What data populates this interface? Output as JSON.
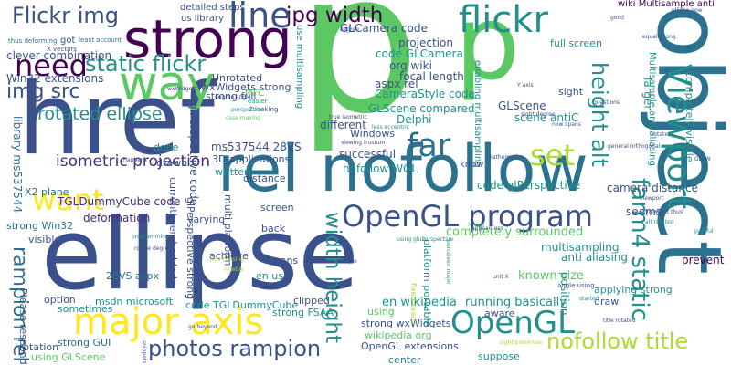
{
  "palette": {
    "dark_purple": "#440154",
    "purple": "#472c7a",
    "indigo": "#3b518b",
    "blue": "#2c718e",
    "teal": "#21908d",
    "green": "#27ad81",
    "light_green": "#5cc863",
    "lime": "#aadc32",
    "yellow": "#fde725"
  },
  "words": {
    "p_big": "p",
    "p2": "p",
    "href": "href",
    "ellipse": "ellipse",
    "object": "object",
    "strong": "strong",
    "rel_nofollow": "rel nofollow",
    "flickr": "flickr",
    "opengl_program": "OpenGL program",
    "major_axis": "major axis",
    "opengl": "OpenGL",
    "way": "way",
    "need": "need",
    "flickr_img": "Flickr img",
    "jpg_width": "jpg width",
    "line": "line",
    "img_src": "img src",
    "static_flickr": "static flickr",
    "rotated_ellipse": "rotated ellipse",
    "far": "far",
    "set": "set",
    "want": "want",
    "photos_rampion": "photos rampion",
    "nofollow_title": "nofollow title",
    "viewport": "Viewport",
    "farm4_static": "farm4 static",
    "height_alt": "height alt",
    "width_height": "width height",
    "rampion_rel": "rampion rel",
    "isometric_projection": "isometric projection",
    "clever_combination": "clever combination",
    "win32_extensions": "Win32 extensions",
    "library_ms537544": "library ms537544",
    "tgldummycube_code": "TGLDummyCube code",
    "deformation": "deformation",
    "x2_plane": "X2 plane",
    "strong_win32": "strong Win32",
    "visible": "visible",
    "r28vs_aspx": "28VS aspx",
    "please_respond": "Please respond",
    "option": "option",
    "sometimes": "sometimes",
    "rotation": "rotation",
    "strong_gui": "strong GUI",
    "using_glscene": "using GLScene",
    "msdn_microsoft": "msdn microsoft",
    "code_tgldummycube": "code TGLDummyCube",
    "strong_wxwidgets": "strong wxWidgets",
    "wikipedia_org": "wikipedia org",
    "opengl_extensions": "OpenGL extensions",
    "center": "center",
    "en_wikipedia": "en wikipedia",
    "running_basically": "running basically",
    "suppose": "suppose",
    "aware": "aware",
    "known_size": "known size",
    "position": "position",
    "applying_strong": "applying strong",
    "draw": "draw",
    "prevent": "prevent",
    "completely_surrounded": "completely surrounded",
    "multisampling": "multisampling",
    "anti_aliasing": "anti aliasing",
    "code_glperspective": "code glPerspective",
    "camera_distance": "camera distance",
    "seems": "seems",
    "multisample_aa": "Multisample anti aliasing",
    "glcamera_code": "GLCamera code",
    "code_glcamera": "code GLCamera",
    "org_wiki": "org wiki",
    "projection": "projection",
    "focal_length": "focal length",
    "aspx_rel": "aspx rel",
    "camerastyle_code": "CameraStyle code",
    "glscene_compared": "GLScene compared",
    "glscene": "GLScene",
    "scene_antic": "scene antiC",
    "delphi": "Delphi",
    "windows": "Windows",
    "successful": "successful",
    "nofollow_wgl": "nofollow WGL",
    "different": "different",
    "full_screen": "full screen",
    "sight": "sight",
    "larger": "larger",
    "completely_visible": "completely visible",
    "wiki_multisample": "wiki Multisample anti",
    "detailed_steps": "detailed steps",
    "us_library": "us library",
    "use_multisampling": "use multisampling",
    "enabling_multisampling": "enabling multisampling",
    "unrotated": "Unrotated",
    "wxwidgets_strong": "wxWidgets strong",
    "strong_full": "strong full",
    "mfc": "MFC",
    "gl_perspective_code": "glPerspective code",
    "ms537544_28vs": "ms537544 28VS",
    "applications_3d": "3D applications",
    "written": "written",
    "distance": "distance",
    "currently_embedded": "currently embedded",
    "varying": "varying",
    "glperspective_strong": "glPerspective strong",
    "multi_platform": "multi platform",
    "screen": "screen",
    "back": "back",
    "achieve": "achieve",
    "spans": "spans",
    "en_us": "en us",
    "clipped": "clipped",
    "using": "using",
    "done": "done",
    "drawn": "drawn",
    "strong_fsaa": "strong FSAA",
    "platform_portable": "platform portable",
    "fixed_exact": "fixed exact",
    "got": "got",
    "thus_deforming": "thus deforming",
    "least_account": "least account",
    "x_vectors": "X vectors",
    "degree_angle": "degree angle",
    "easier": "easier",
    "z_looking": "Z looking",
    "perspective": "perspective",
    "case_making": "case making",
    "true_isometric": "true isometric",
    "viewing_frustum": "viewing frustum",
    "less_eccentric": "less eccentric",
    "general_orthogonal": "general orthogonal",
    "glew": "GLEW",
    "mathematics": "mathematics",
    "now_spans": "now spans",
    "know": "know",
    "viewport_thus": "viewport thus",
    "alt_rotated": "alt rotated",
    "painful": "painful",
    "title_rotated": "title rotated",
    "angle_using": "angle using",
    "started": "started",
    "unit_x": "unit X",
    "simple": "simple",
    "appear_less": "appear less",
    "using_gluperspective": "using gluPerspective",
    "rotate_degrees": "rotate degrees",
    "programming": "programming",
    "happens": "happens",
    "go_beyond": "go beyond",
    "snippets": "snippets",
    "newbie": "newbie",
    "case_causing": "case causing",
    "sight_preserves": "sight preserves",
    "perceived_major": "perceived major",
    "x_axis": "X axis",
    "y_axis": "Y axis",
    "questions": "questions",
    "equally_long": "equally long",
    "ellipse_now": "ellipse now",
    "good": "good",
    "degree": "degree",
    "code_small": "code",
    "sm_a": "wxWidgets",
    "sm_b": "sight degree",
    "sm_c": "rotate",
    "sm_d": "viewport"
  }
}
